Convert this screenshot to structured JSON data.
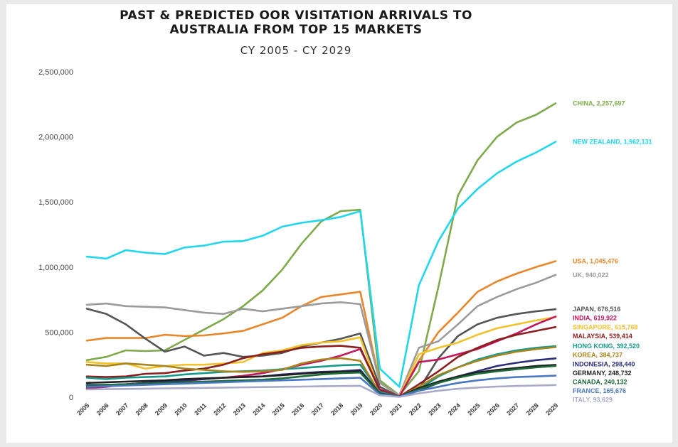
{
  "chart_data": {
    "type": "line",
    "title": "PAST & PREDICTED OOR VISITATION ARRIVALS TO AUSTRALIA FROM TOP 15 MARKETS",
    "title_lines": [
      "PAST & PREDICTED OOR VISITATION ARRIVALS TO",
      "AUSTRALIA FROM TOP 15 MARKETS"
    ],
    "subtitle": "CY 2005 - CY 2029",
    "xlabel": "",
    "ylabel": "",
    "ylim": [
      0,
      2500000
    ],
    "yticks": [
      0,
      500000,
      1000000,
      1500000,
      2000000,
      2500000
    ],
    "ytick_labels": [
      "0",
      "500,000",
      "1,000,000",
      "1,500,000",
      "2,000,000",
      "2,500,000"
    ],
    "x": [
      "2005",
      "2006",
      "2007",
      "2008",
      "2009",
      "2010",
      "2011",
      "2012",
      "2013",
      "2014",
      "2015",
      "2016",
      "2017",
      "2018",
      "2019",
      "2020",
      "2021",
      "2022",
      "2023",
      "2024",
      "2025",
      "2026",
      "2027",
      "2028",
      "2029"
    ],
    "grid": false,
    "legend": "labels at line ends (right)",
    "series": [
      {
        "name": "CHINA",
        "label": "CHINA, 2,257,697",
        "color": "#7daa4a",
        "values": [
          285000,
          310000,
          360000,
          355000,
          360000,
          440000,
          520000,
          600000,
          700000,
          820000,
          980000,
          1180000,
          1350000,
          1430000,
          1440000,
          130000,
          15000,
          200000,
          850000,
          1550000,
          1820000,
          2000000,
          2110000,
          2170000,
          2257697
        ]
      },
      {
        "name": "NEW ZEALAND",
        "label": "NEW ZEALAND, 1,962,131",
        "color": "#22d6ee",
        "values": [
          1080000,
          1065000,
          1130000,
          1110000,
          1100000,
          1150000,
          1165000,
          1195000,
          1200000,
          1240000,
          1310000,
          1340000,
          1360000,
          1385000,
          1430000,
          220000,
          80000,
          860000,
          1200000,
          1450000,
          1600000,
          1720000,
          1810000,
          1880000,
          1962131
        ]
      },
      {
        "name": "USA",
        "label": "USA, 1,045,476",
        "color": "#e9862a",
        "values": [
          435000,
          455000,
          455000,
          455000,
          480000,
          470000,
          475000,
          490000,
          510000,
          560000,
          610000,
          700000,
          770000,
          790000,
          810000,
          110000,
          10000,
          280000,
          500000,
          650000,
          810000,
          890000,
          950000,
          1000000,
          1045476
        ]
      },
      {
        "name": "UK",
        "label": "UK, 940,022",
        "color": "#9b9b9b",
        "values": [
          710000,
          720000,
          700000,
          695000,
          690000,
          670000,
          650000,
          640000,
          680000,
          660000,
          680000,
          700000,
          720000,
          730000,
          715000,
          110000,
          15000,
          380000,
          430000,
          560000,
          700000,
          770000,
          830000,
          880000,
          940022
        ]
      },
      {
        "name": "JAPAN",
        "label": "JAPAN, 676,516",
        "color": "#555555",
        "values": [
          680000,
          640000,
          560000,
          450000,
          350000,
          390000,
          320000,
          340000,
          310000,
          320000,
          340000,
          390000,
          420000,
          450000,
          490000,
          80000,
          5000,
          60000,
          300000,
          470000,
          560000,
          610000,
          640000,
          660000,
          676516
        ]
      },
      {
        "name": "SINGAPORE",
        "label": "SINGAPORE, 615,768",
        "color": "#f2c12e",
        "values": [
          270000,
          260000,
          260000,
          220000,
          240000,
          250000,
          250000,
          260000,
          270000,
          340000,
          360000,
          400000,
          420000,
          430000,
          460000,
          40000,
          5000,
          330000,
          380000,
          420000,
          480000,
          530000,
          560000,
          590000,
          615768
        ]
      },
      {
        "name": "INDIA",
        "label": "INDIA, 619,922",
        "color": "#c2175b",
        "values": [
          70000,
          80000,
          100000,
          110000,
          115000,
          125000,
          140000,
          150000,
          165000,
          185000,
          215000,
          250000,
          280000,
          320000,
          370000,
          60000,
          5000,
          270000,
          290000,
          330000,
          370000,
          430000,
          490000,
          560000,
          619922
        ]
      },
      {
        "name": "MALAYSIA",
        "label": "MALAYSIA, 539,414",
        "color": "#8b1e1e",
        "values": [
          160000,
          155000,
          160000,
          180000,
          185000,
          205000,
          220000,
          250000,
          300000,
          330000,
          350000,
          380000,
          390000,
          395000,
          380000,
          50000,
          5000,
          100000,
          200000,
          310000,
          380000,
          440000,
          480000,
          510000,
          539414
        ]
      },
      {
        "name": "HONG KONG",
        "label": "HONG KONG, 392,520",
        "color": "#159a8c",
        "values": [
          150000,
          140000,
          150000,
          155000,
          160000,
          175000,
          185000,
          195000,
          200000,
          205000,
          215000,
          225000,
          235000,
          245000,
          250000,
          40000,
          5000,
          60000,
          160000,
          230000,
          290000,
          330000,
          360000,
          380000,
          392520
        ]
      },
      {
        "name": "KOREA",
        "label": "KOREA, 384,737",
        "color": "#a8851f",
        "values": [
          250000,
          240000,
          260000,
          250000,
          240000,
          220000,
          210000,
          200000,
          195000,
          200000,
          210000,
          260000,
          290000,
          300000,
          280000,
          30000,
          5000,
          80000,
          170000,
          230000,
          280000,
          320000,
          350000,
          370000,
          384737
        ]
      },
      {
        "name": "INDONESIA",
        "label": "INDONESIA, 298,440",
        "color": "#2b2f7a",
        "values": [
          95000,
          95000,
          100000,
          110000,
          120000,
          130000,
          140000,
          150000,
          155000,
          160000,
          175000,
          185000,
          195000,
          200000,
          210000,
          30000,
          5000,
          50000,
          110000,
          160000,
          200000,
          240000,
          265000,
          285000,
          298440
        ]
      },
      {
        "name": "GERMANY",
        "label": "GERMANY, 248,732",
        "color": "#1f1f1f",
        "values": [
          110000,
          115000,
          120000,
          125000,
          130000,
          140000,
          145000,
          150000,
          155000,
          160000,
          170000,
          180000,
          190000,
          195000,
          200000,
          25000,
          5000,
          70000,
          120000,
          160000,
          190000,
          210000,
          225000,
          240000,
          248732
        ]
      },
      {
        "name": "CANADA",
        "label": "CANADA, 240,132",
        "color": "#1e6b3a",
        "values": [
          90000,
          95000,
          100000,
          105000,
          110000,
          115000,
          120000,
          125000,
          130000,
          135000,
          145000,
          160000,
          175000,
          185000,
          190000,
          25000,
          5000,
          60000,
          110000,
          150000,
          180000,
          200000,
          215000,
          230000,
          240132
        ]
      },
      {
        "name": "FRANCE",
        "label": "FRANCE, 165,676",
        "color": "#4a78c2",
        "values": [
          80000,
          85000,
          90000,
          95000,
          100000,
          105000,
          110000,
          115000,
          120000,
          125000,
          130000,
          135000,
          140000,
          145000,
          150000,
          20000,
          5000,
          50000,
          80000,
          110000,
          130000,
          145000,
          155000,
          160000,
          165676
        ]
      },
      {
        "name": "ITALY",
        "label": "ITALY, 93,629",
        "color": "#a9a9c9",
        "values": [
          60000,
          62000,
          64000,
          66000,
          68000,
          70000,
          72000,
          74000,
          76000,
          78000,
          80000,
          82000,
          84000,
          86000,
          88000,
          15000,
          3000,
          30000,
          50000,
          65000,
          75000,
          82000,
          87000,
          90000,
          93629
        ]
      }
    ]
  }
}
